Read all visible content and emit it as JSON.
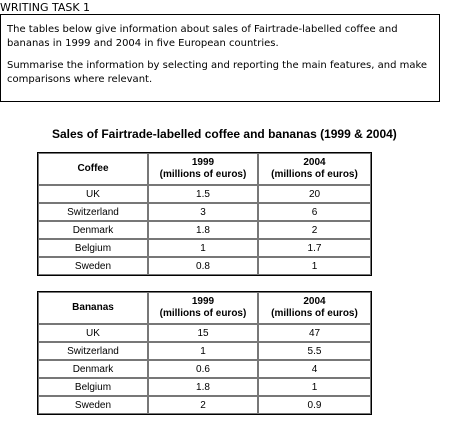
{
  "task_heading": "WRITING TASK 1",
  "prompt": {
    "paragraph1": "The tables below give information about sales of Fairtrade-labelled coffee and bananas in 1999 and 2004 in five European countries.",
    "paragraph2": "Summarise the information by selecting and reporting the main features, and make comparisons where relevant."
  },
  "table_title": "Sales of Fairtrade-labelled coffee and bananas (1999 & 2004)",
  "tables": [
    {
      "header": [
        "Coffee",
        "1999",
        "(millions of euros)",
        "2004",
        "(millions of euros)"
      ],
      "rows": [
        [
          "UK",
          "1.5",
          "20"
        ],
        [
          "Switzerland",
          "3",
          "6"
        ],
        [
          "Denmark",
          "1.8",
          "2"
        ],
        [
          "Belgium",
          "1",
          "1.7"
        ],
        [
          "Sweden",
          "0.8",
          "1"
        ]
      ]
    },
    {
      "header": [
        "Bananas",
        "1999",
        "(millions of euros)",
        "2004",
        "(millions of euros)"
      ],
      "rows": [
        [
          "UK",
          "15",
          "47"
        ],
        [
          "Switzerland",
          "1",
          "5.5"
        ],
        [
          "Denmark",
          "0.6",
          "4"
        ],
        [
          "Belgium",
          "1.8",
          "1"
        ],
        [
          "Sweden",
          "2",
          "0.9"
        ]
      ]
    }
  ]
}
